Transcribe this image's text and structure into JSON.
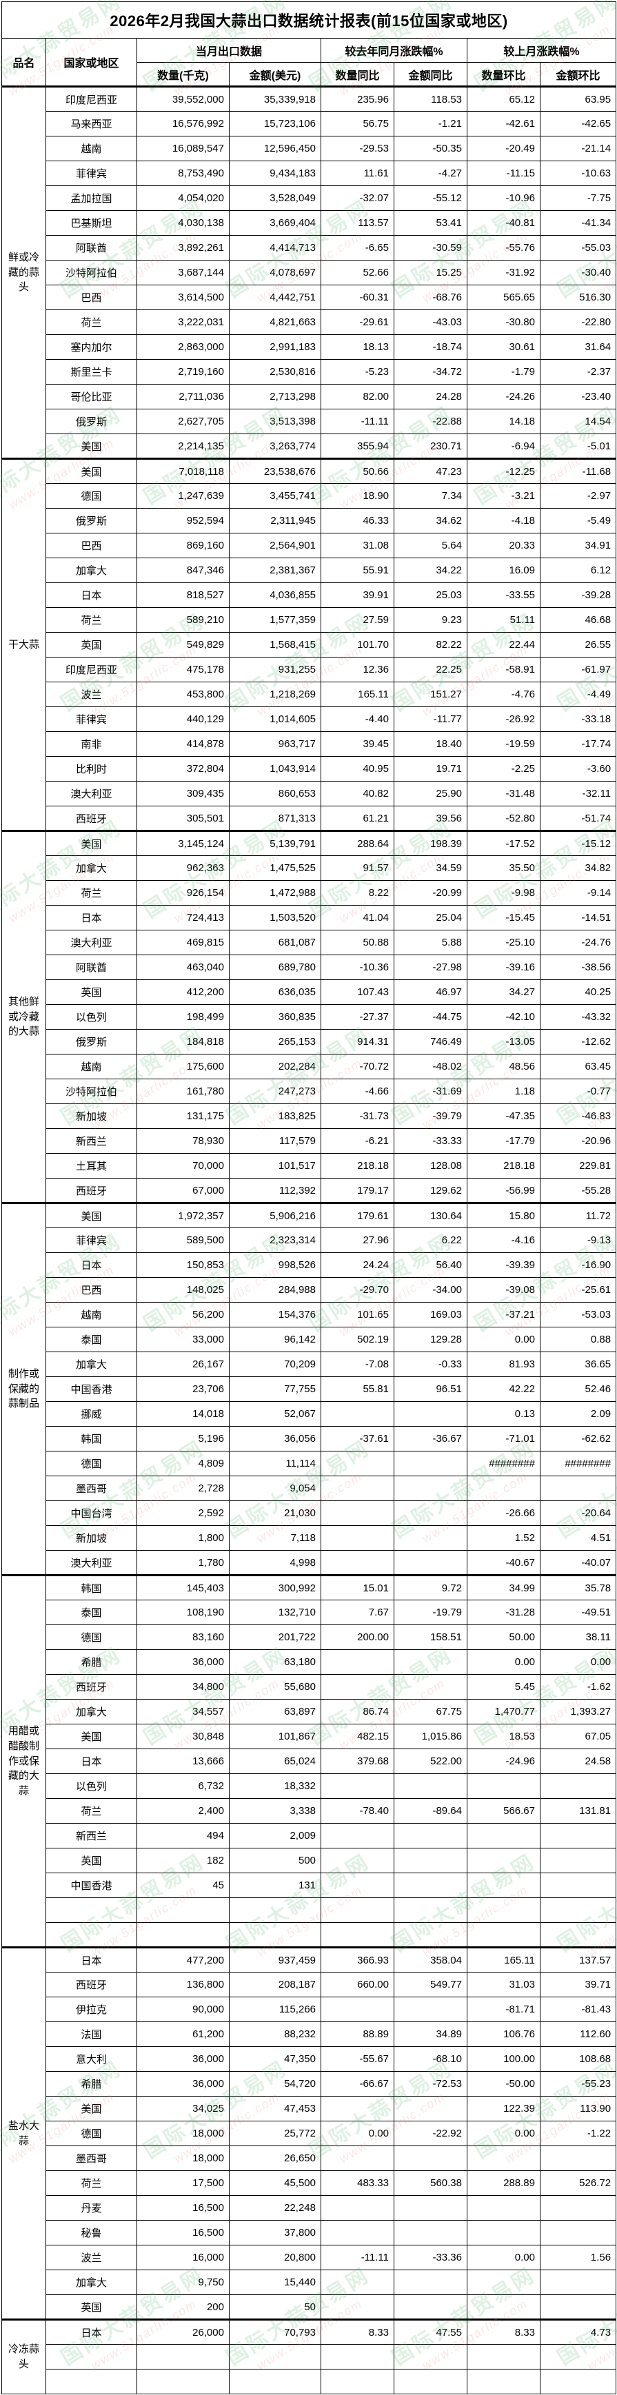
{
  "title": "2026年2月我国大蒜出口数据统计报表(前15位国家或地区)",
  "watermark": {
    "cn_text": "国际大蒜贸易网",
    "url_text": "www.51garlic.com"
  },
  "colors": {
    "negative": "#ff0000",
    "positive": "#000000",
    "border": "#000000"
  },
  "header": {
    "product": "品名",
    "country": "国家或地区",
    "group_current": "当月出口数据",
    "group_yoy": "较去年同月涨跌幅%",
    "group_mom": "较上月涨跌幅%",
    "sub": [
      "数量(千克)",
      "金额(美元)",
      "数量同比",
      "金额同比",
      "数量环比",
      "金额环比"
    ]
  },
  "sections": [
    {
      "product": "鲜或冷藏的蒜头",
      "rows": [
        [
          "印度尼西亚",
          "39,552,000",
          "35,339,918",
          "235.96",
          "118.53",
          "65.12",
          "63.95"
        ],
        [
          "马来西亚",
          "16,576,992",
          "15,723,106",
          "56.75",
          "-1.21",
          "-42.61",
          "-42.65"
        ],
        [
          "越南",
          "16,089,547",
          "12,596,450",
          "-29.53",
          "-50.35",
          "-20.49",
          "-21.14"
        ],
        [
          "菲律宾",
          "8,753,490",
          "9,434,183",
          "11.61",
          "-4.27",
          "-11.15",
          "-10.63"
        ],
        [
          "孟加拉国",
          "4,054,020",
          "3,528,049",
          "-32.07",
          "-55.12",
          "-10.96",
          "-7.75"
        ],
        [
          "巴基斯坦",
          "4,030,138",
          "3,669,404",
          "113.57",
          "53.41",
          "-40.81",
          "-41.34"
        ],
        [
          "阿联酋",
          "3,892,261",
          "4,414,713",
          "-6.65",
          "-30.59",
          "-55.76",
          "-55.03"
        ],
        [
          "沙特阿拉伯",
          "3,687,144",
          "4,078,697",
          "52.66",
          "15.25",
          "-31.92",
          "-30.40"
        ],
        [
          "巴西",
          "3,614,500",
          "4,442,751",
          "-60.31",
          "-68.76",
          "565.65",
          "516.30"
        ],
        [
          "荷兰",
          "3,222,031",
          "4,821,663",
          "-29.61",
          "-43.03",
          "-30.80",
          "-22.80"
        ],
        [
          "塞内加尔",
          "2,863,000",
          "2,991,183",
          "18.13",
          "-18.74",
          "30.61",
          "31.64"
        ],
        [
          "斯里兰卡",
          "2,719,160",
          "2,530,816",
          "-5.23",
          "-34.72",
          "-1.79",
          "-2.37"
        ],
        [
          "哥伦比亚",
          "2,711,036",
          "2,713,298",
          "82.00",
          "24.28",
          "-24.26",
          "-23.40"
        ],
        [
          "俄罗斯",
          "2,627,705",
          "3,513,398",
          "-11.11",
          "-22.88",
          "14.18",
          "14.54"
        ],
        [
          "美国",
          "2,214,135",
          "3,263,774",
          "355.94",
          "230.71",
          "-6.94",
          "-5.01"
        ]
      ]
    },
    {
      "product": "干大蒜",
      "rows": [
        [
          "美国",
          "7,018,118",
          "23,538,676",
          "50.66",
          "47.23",
          "-12.25",
          "-11.68"
        ],
        [
          "德国",
          "1,247,639",
          "3,455,741",
          "18.90",
          "7.34",
          "-3.21",
          "-2.97"
        ],
        [
          "俄罗斯",
          "952,594",
          "2,311,945",
          "46.33",
          "34.62",
          "-4.18",
          "-5.49"
        ],
        [
          "巴西",
          "869,160",
          "2,564,901",
          "31.08",
          "5.64",
          "20.33",
          "34.91"
        ],
        [
          "加拿大",
          "847,346",
          "2,381,367",
          "55.91",
          "34.22",
          "16.09",
          "6.12"
        ],
        [
          "日本",
          "818,527",
          "4,036,855",
          "39.91",
          "25.03",
          "-33.55",
          "-39.28"
        ],
        [
          "荷兰",
          "589,210",
          "1,577,359",
          "27.59",
          "9.23",
          "51.11",
          "46.68"
        ],
        [
          "英国",
          "549,829",
          "1,568,415",
          "101.70",
          "82.22",
          "22.44",
          "26.55"
        ],
        [
          "印度尼西亚",
          "475,178",
          "931,255",
          "12.36",
          "22.25",
          "-58.91",
          "-61.97"
        ],
        [
          "波兰",
          "453,800",
          "1,218,269",
          "165.11",
          "151.27",
          "-4.76",
          "-4.49"
        ],
        [
          "菲律宾",
          "440,129",
          "1,014,605",
          "-4.40",
          "-11.77",
          "-26.92",
          "-33.18"
        ],
        [
          "南非",
          "414,878",
          "963,717",
          "39.45",
          "18.40",
          "-19.59",
          "-17.74"
        ],
        [
          "比利时",
          "372,804",
          "1,043,914",
          "40.95",
          "19.71",
          "-2.25",
          "-3.60"
        ],
        [
          "澳大利亚",
          "309,435",
          "860,653",
          "40.82",
          "25.90",
          "-31.48",
          "-32.11"
        ],
        [
          "西班牙",
          "305,501",
          "871,313",
          "61.21",
          "39.56",
          "-52.80",
          "-51.74"
        ]
      ]
    },
    {
      "product": "其他鲜或冷藏的大蒜",
      "rows": [
        [
          "美国",
          "3,145,124",
          "5,139,791",
          "288.64",
          "198.39",
          "-17.52",
          "-15.12"
        ],
        [
          "加拿大",
          "962,363",
          "1,475,525",
          "91.57",
          "34.59",
          "35.50",
          "34.82"
        ],
        [
          "荷兰",
          "926,154",
          "1,472,988",
          "8.22",
          "-20.99",
          "-9.98",
          "-9.14"
        ],
        [
          "日本",
          "724,413",
          "1,503,520",
          "41.04",
          "25.04",
          "-15.45",
          "-14.51"
        ],
        [
          "澳大利亚",
          "469,815",
          "681,087",
          "50.88",
          "5.88",
          "-25.10",
          "-24.76"
        ],
        [
          "阿联酋",
          "463,040",
          "689,780",
          "-10.36",
          "-27.98",
          "-39.16",
          "-38.56"
        ],
        [
          "英国",
          "412,200",
          "636,035",
          "107.43",
          "46.97",
          "34.27",
          "40.25"
        ],
        [
          "以色列",
          "198,499",
          "360,835",
          "-27.37",
          "-44.75",
          "-42.10",
          "-43.32"
        ],
        [
          "俄罗斯",
          "184,818",
          "265,153",
          "914.31",
          "746.49",
          "-13.05",
          "-12.62"
        ],
        [
          "越南",
          "175,600",
          "202,284",
          "-70.72",
          "-48.02",
          "48.56",
          "63.45"
        ],
        [
          "沙特阿拉伯",
          "161,780",
          "247,273",
          "-4.66",
          "-31.69",
          "1.18",
          "-0.77"
        ],
        [
          "新加坡",
          "131,175",
          "183,825",
          "-31.73",
          "-39.79",
          "-47.35",
          "-46.83"
        ],
        [
          "新西兰",
          "78,930",
          "117,579",
          "-6.21",
          "-33.33",
          "-17.79",
          "-20.96"
        ],
        [
          "土耳其",
          "70,000",
          "101,517",
          "218.18",
          "128.08",
          "218.18",
          "229.81"
        ],
        [
          "西班牙",
          "67,000",
          "112,392",
          "179.17",
          "129.62",
          "-56.99",
          "-55.28"
        ]
      ]
    },
    {
      "product": "制作或保藏的蒜制品",
      "rows": [
        [
          "美国",
          "1,972,357",
          "5,906,216",
          "179.61",
          "130.64",
          "15.80",
          "11.72"
        ],
        [
          "菲律宾",
          "589,500",
          "2,323,314",
          "27.96",
          "6.22",
          "-4.16",
          "-9.13"
        ],
        [
          "日本",
          "150,853",
          "998,526",
          "24.24",
          "56.40",
          "-39.39",
          "-16.90"
        ],
        [
          "巴西",
          "148,025",
          "284,988",
          "-29.70",
          "-34.00",
          "-39.08",
          "-25.61"
        ],
        [
          "越南",
          "56,200",
          "154,376",
          "101.65",
          "169.03",
          "-37.21",
          "-53.03"
        ],
        [
          "泰国",
          "33,000",
          "96,142",
          "502.19",
          "129.28",
          "0.00",
          "0.88"
        ],
        [
          "加拿大",
          "26,167",
          "70,209",
          "-7.08",
          "-0.33",
          "81.93",
          "36.65"
        ],
        [
          "中国香港",
          "23,706",
          "77,755",
          "55.81",
          "96.51",
          "42.22",
          "52.46"
        ],
        [
          "挪威",
          "14,018",
          "52,067",
          "",
          "",
          "0.13",
          "2.09"
        ],
        [
          "韩国",
          "5,196",
          "36,056",
          "-37.61",
          "-36.67",
          "-71.01",
          "-62.62"
        ],
        [
          "德国",
          "4,809",
          "11,114",
          "",
          "",
          "########",
          "########"
        ],
        [
          "墨西哥",
          "2,728",
          "9,054",
          "",
          "",
          "",
          ""
        ],
        [
          "中国台湾",
          "2,592",
          "21,030",
          "",
          "",
          "-26.66",
          "-20.64"
        ],
        [
          "新加坡",
          "1,800",
          "7,118",
          "",
          "",
          "1.52",
          "4.51"
        ],
        [
          "澳大利亚",
          "1,780",
          "4,998",
          "",
          "",
          "-40.67",
          "-40.07"
        ]
      ]
    },
    {
      "product": "用醋或醋酸制作或保藏的大蒜",
      "rows": [
        [
          "韩国",
          "145,403",
          "300,992",
          "15.01",
          "9.72",
          "34.99",
          "35.78"
        ],
        [
          "泰国",
          "108,190",
          "132,710",
          "7.67",
          "-19.79",
          "-31.28",
          "-49.51"
        ],
        [
          "德国",
          "83,160",
          "201,722",
          "200.00",
          "158.51",
          "50.00",
          "38.11"
        ],
        [
          "希腊",
          "36,000",
          "63,180",
          "",
          "",
          "0.00",
          "0.00"
        ],
        [
          "西班牙",
          "34,800",
          "55,680",
          "",
          "",
          "5.45",
          "-1.62"
        ],
        [
          "加拿大",
          "34,557",
          "63,897",
          "86.74",
          "67.75",
          "1,470.77",
          "1,393.27"
        ],
        [
          "美国",
          "30,848",
          "101,867",
          "482.15",
          "1,015.86",
          "18.53",
          "67.05"
        ],
        [
          "日本",
          "13,666",
          "65,024",
          "379.68",
          "522.00",
          "-24.96",
          "24.58"
        ],
        [
          "以色列",
          "6,732",
          "18,332",
          "",
          "",
          "",
          ""
        ],
        [
          "荷兰",
          "2,400",
          "3,338",
          "-78.40",
          "-89.64",
          "566.67",
          "131.81"
        ],
        [
          "新西兰",
          "494",
          "2,009",
          "",
          "",
          "",
          ""
        ],
        [
          "英国",
          "182",
          "500",
          "",
          "",
          "",
          ""
        ],
        [
          "中国香港",
          "45",
          "131",
          "",
          "",
          "",
          ""
        ],
        [
          "",
          "",
          "",
          "",
          "",
          "",
          ""
        ],
        [
          "",
          "",
          "",
          "",
          "",
          "",
          ""
        ]
      ]
    },
    {
      "product": "盐水大蒜",
      "rows": [
        [
          "日本",
          "477,200",
          "937,459",
          "366.93",
          "358.04",
          "165.11",
          "137.57"
        ],
        [
          "西班牙",
          "136,800",
          "208,187",
          "660.00",
          "549.77",
          "31.03",
          "39.71"
        ],
        [
          "伊拉克",
          "90,000",
          "115,266",
          "",
          "",
          "-81.71",
          "-81.43"
        ],
        [
          "法国",
          "61,200",
          "88,232",
          "88.89",
          "34.89",
          "106.76",
          "112.60"
        ],
        [
          "意大利",
          "36,000",
          "47,350",
          "-55.67",
          "-68.10",
          "100.00",
          "108.68"
        ],
        [
          "希腊",
          "36,000",
          "54,720",
          "-66.67",
          "-72.53",
          "-50.00",
          "-55.23"
        ],
        [
          "美国",
          "34,025",
          "47,453",
          "",
          "",
          "122.39",
          "113.90"
        ],
        [
          "德国",
          "18,000",
          "25,772",
          "0.00",
          "-22.92",
          "0.00",
          "-1.22"
        ],
        [
          "墨西哥",
          "18,000",
          "26,650",
          "",
          "",
          "",
          ""
        ],
        [
          "荷兰",
          "17,500",
          "45,500",
          "483.33",
          "560.38",
          "288.89",
          "526.72"
        ],
        [
          "丹麦",
          "16,500",
          "22,248",
          "",
          "",
          "",
          ""
        ],
        [
          "秘鲁",
          "16,500",
          "37,800",
          "",
          "",
          "",
          ""
        ],
        [
          "波兰",
          "16,000",
          "20,800",
          "-11.11",
          "-33.36",
          "0.00",
          "1.56"
        ],
        [
          "加拿大",
          "9,750",
          "15,440",
          "",
          "",
          "",
          ""
        ],
        [
          "英国",
          "200",
          "50",
          "",
          "",
          "",
          ""
        ]
      ]
    },
    {
      "product": "冷冻蒜头",
      "rows": [
        [
          "日本",
          "26,000",
          "70,793",
          "8.33",
          "47.55",
          "8.33",
          "4.73"
        ],
        [
          "",
          "",
          "",
          "",
          "",
          "",
          ""
        ],
        [
          "",
          "",
          "",
          "",
          "",
          "",
          ""
        ]
      ]
    }
  ]
}
